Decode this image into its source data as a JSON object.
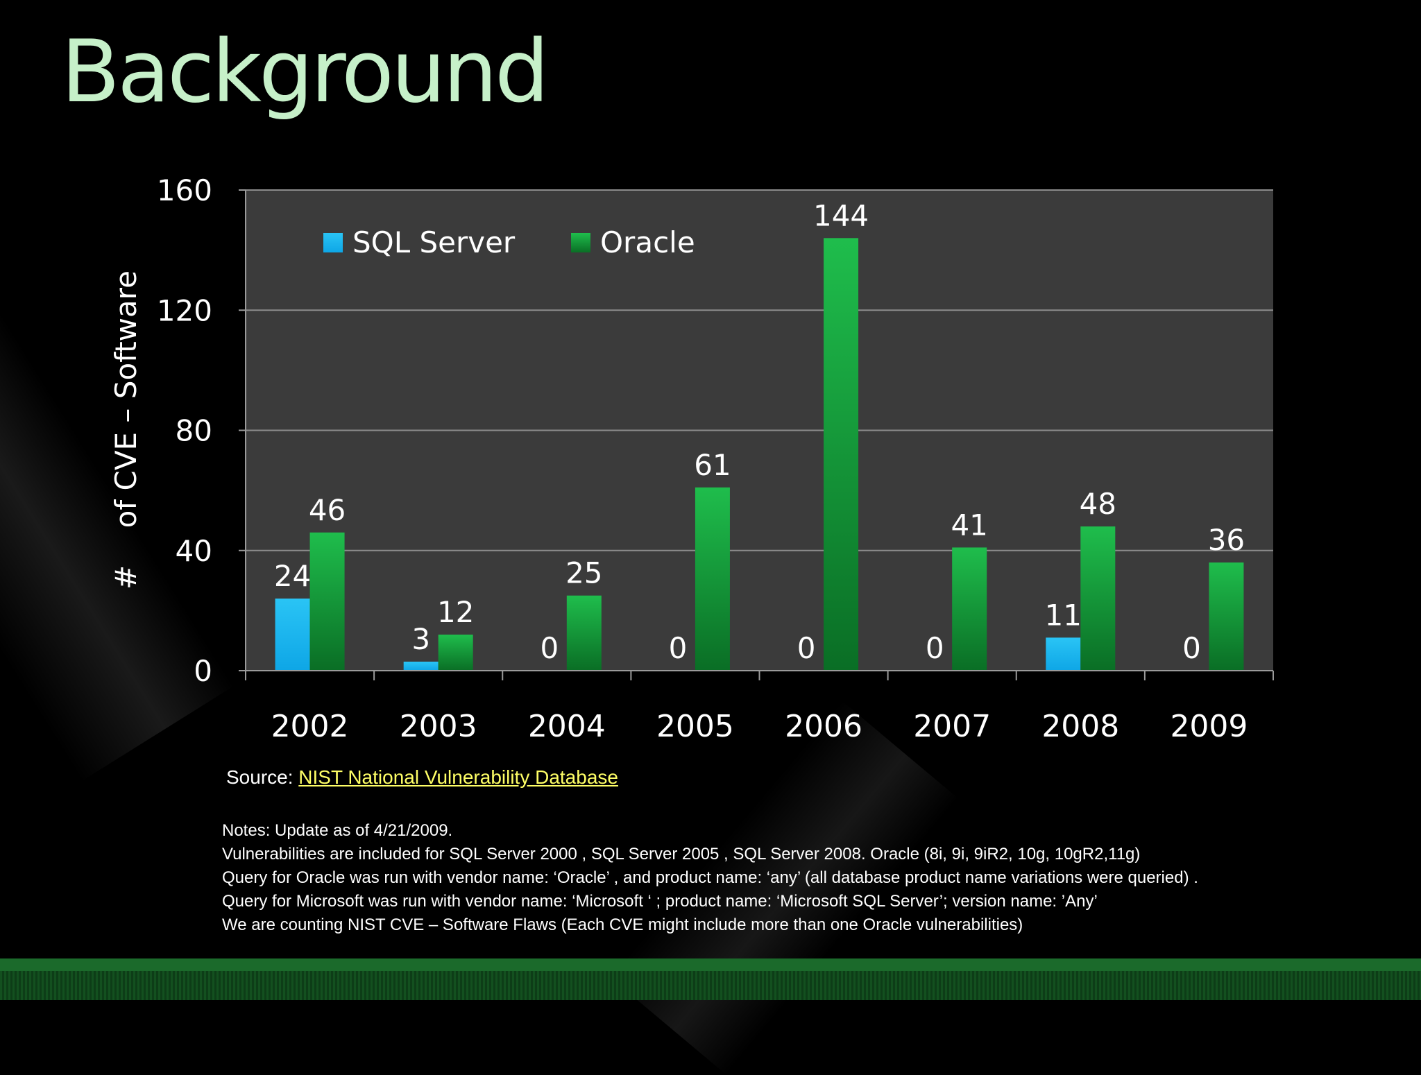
{
  "slide": {
    "title": "Background"
  },
  "chart_data": {
    "type": "bar",
    "categories": [
      "2002",
      "2003",
      "2004",
      "2005",
      "2006",
      "2007",
      "2008",
      "2009"
    ],
    "series": [
      {
        "name": "SQL Server",
        "color": "#19b6f0",
        "values": [
          24,
          3,
          0,
          0,
          0,
          0,
          11,
          0
        ]
      },
      {
        "name": "Oracle",
        "color": "#11a33a",
        "values": [
          46,
          12,
          25,
          61,
          144,
          41,
          48,
          36
        ]
      }
    ],
    "ylabel": "#    of CVE – Software",
    "ylim": [
      0,
      160
    ],
    "yticks": [
      0,
      40,
      80,
      120,
      160
    ],
    "grid": true,
    "legend": "top-left",
    "plot_background": "#3b3b3b"
  },
  "source": {
    "label": "Source:",
    "link_text": "NIST National Vulnerability Database"
  },
  "notes": [
    "Notes:  Update as of 4/21/2009.",
    "Vulnerabilities are included for SQL Server 2000 , SQL Server 2005 , SQL Server 2008. Oracle  (8i, 9i, 9iR2, 10g, 10gR2,11g)",
    "Query for Oracle was run with vendor name: ‘Oracle’ ,  and product name: ‘any’ (all database product name variations were queried) .",
    "Query for Microsoft  was run with vendor name: ‘Microsoft ‘ ; product name: ‘Microsoft SQL Server’;  version name: ’Any’",
    "We are counting NIST CVE – Software Flaws (Each CVE might include more than one Oracle vulnerabilities)"
  ]
}
